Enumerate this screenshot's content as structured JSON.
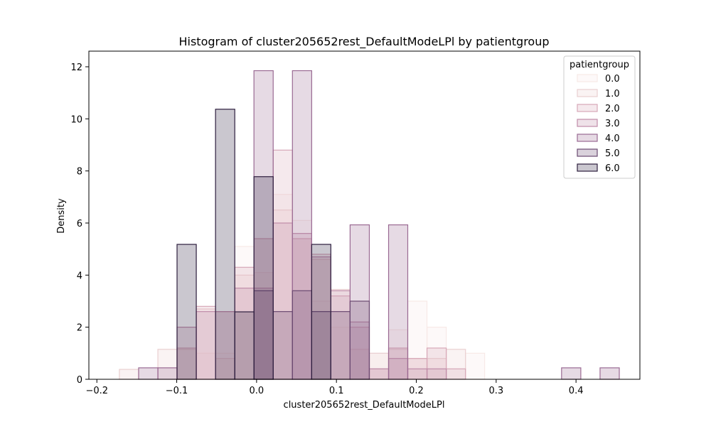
{
  "chart_data": {
    "type": "histogram",
    "title": "Histogram of cluster205652rest_DefaultModeLPl by patientgroup",
    "xlabel": "cluster205652rest_DefaultModeLPl",
    "ylabel": "Density",
    "xlim": [
      -0.21,
      0.48
    ],
    "ylim": [
      0,
      12.6
    ],
    "xticks": [
      -0.2,
      -0.1,
      0.0,
      0.1,
      0.2,
      0.3,
      0.4
    ],
    "xtick_labels": [
      "−0.2",
      "−0.1",
      "0.0",
      "0.1",
      "0.2",
      "0.3",
      "0.4"
    ],
    "yticks": [
      0,
      2,
      4,
      6,
      8,
      10,
      12
    ],
    "ytick_labels": [
      "0",
      "2",
      "4",
      "6",
      "8",
      "10",
      "12"
    ],
    "grid": false,
    "legend": {
      "title": "patientgroup",
      "placement": "top-right"
    },
    "bin_edges": [
      -0.1718,
      -0.1477,
      -0.1236,
      -0.0996,
      -0.0755,
      -0.0514,
      -0.0273,
      -0.0033,
      0.0208,
      0.0449,
      0.069,
      0.093,
      0.1171,
      0.1412,
      0.1653,
      0.1893,
      0.2134,
      0.2375,
      0.2616,
      0.2856,
      0.3097,
      0.3338,
      0.3579,
      0.3819,
      0.406,
      0.4301,
      0.4542
    ],
    "series": [
      {
        "name": "0.0",
        "color": "#f7e9e7",
        "values": [
          0.0,
          0.0,
          0.0,
          0.0,
          1.0,
          1.0,
          5.1,
          4.1,
          7.1,
          6.1,
          3.0,
          2.0,
          3.0,
          1.0,
          1.9,
          3.0,
          2.0,
          0.0,
          1.0,
          0.0,
          0.0,
          0.0,
          0.0,
          0.0,
          0.0,
          0.0
        ]
      },
      {
        "name": "1.0",
        "color": "#eacfd0",
        "values": [
          0.38,
          0.0,
          1.15,
          1.15,
          2.7,
          0.8,
          4.0,
          5.4,
          6.5,
          5.4,
          4.6,
          3.45,
          1.15,
          1.0,
          1.15,
          0.8,
          0.8,
          1.15,
          0.0,
          0.0,
          0.0,
          0.0,
          0.0,
          0.0,
          0.0,
          0.0
        ]
      },
      {
        "name": "2.0",
        "color": "#d7a8b8",
        "values": [
          0.0,
          0.0,
          0.0,
          1.2,
          2.8,
          2.6,
          4.3,
          5.4,
          8.8,
          5.4,
          4.8,
          3.2,
          2.0,
          0.4,
          1.2,
          0.8,
          1.2,
          0.4,
          0.0,
          0.0,
          0.0,
          0.0,
          0.0,
          0.0,
          0.0,
          0.0
        ]
      },
      {
        "name": "3.0",
        "color": "#c08da9",
        "values": [
          0.0,
          0.0,
          0.0,
          2.0,
          2.6,
          2.6,
          3.5,
          3.5,
          6.0,
          5.6,
          4.7,
          3.4,
          2.2,
          0.4,
          0.8,
          0.4,
          0.4,
          0.0,
          0.0,
          0.0,
          0.0,
          0.0,
          0.0,
          0.0,
          0.0,
          0.0
        ]
      },
      {
        "name": "4.0",
        "color": "#9a6a93",
        "values": [
          0.0,
          0.44,
          0.44,
          0.0,
          0.0,
          0.0,
          0.0,
          11.85,
          0.0,
          11.85,
          0.0,
          0.0,
          5.93,
          0.0,
          5.93,
          0.0,
          0.0,
          0.0,
          0.0,
          0.0,
          0.0,
          0.0,
          0.0,
          0.44,
          0.0,
          0.44
        ]
      },
      {
        "name": "5.0",
        "color": "#6b4a72",
        "values": [
          0.0,
          0.0,
          0.0,
          0.0,
          0.0,
          0.0,
          0.0,
          3.4,
          2.6,
          3.4,
          2.6,
          2.6,
          3.0,
          0.0,
          0.0,
          0.0,
          0.0,
          0.0,
          0.0,
          0.0,
          0.0,
          0.0,
          0.0,
          0.0,
          0.0,
          0.0
        ]
      },
      {
        "name": "6.0",
        "color": "#2d1e3e",
        "values": [
          0.0,
          0.0,
          0.0,
          5.18,
          0.0,
          10.37,
          2.59,
          7.78,
          0.0,
          0.0,
          5.18,
          0.0,
          0.0,
          0.0,
          0.0,
          0.0,
          0.0,
          0.0,
          0.0,
          0.0,
          0.0,
          0.0,
          0.0,
          0.0,
          0.0,
          0.0
        ]
      }
    ]
  }
}
